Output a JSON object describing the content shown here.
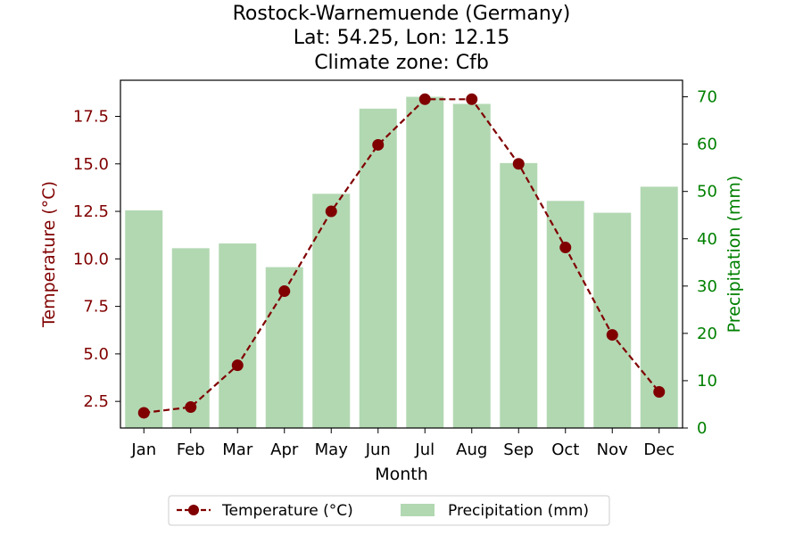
{
  "chart_data": {
    "type": "bar+line",
    "title_lines": [
      "Rostock-Warnemuende (Germany)",
      "Lat: 54.25, Lon: 12.15",
      "Climate zone: Cfb"
    ],
    "categories": [
      "Jan",
      "Feb",
      "Mar",
      "Apr",
      "May",
      "Jun",
      "Jul",
      "Aug",
      "Sep",
      "Oct",
      "Nov",
      "Dec"
    ],
    "xlabel": "Month",
    "temperature": {
      "name": "Temperature (°C)",
      "values": [
        1.9,
        2.2,
        4.4,
        8.3,
        12.5,
        16.0,
        18.4,
        18.4,
        15.0,
        10.6,
        6.0,
        3.0
      ],
      "axis_label": "Temperature (°C)",
      "ylim": [
        1.1,
        19.4
      ],
      "ticks": [
        "2.5",
        "5.0",
        "7.5",
        "10.0",
        "12.5",
        "15.0",
        "17.5"
      ],
      "tick_values": [
        2.5,
        5.0,
        7.5,
        10.0,
        12.5,
        15.0,
        17.5
      ],
      "color": "#800000"
    },
    "precipitation": {
      "name": "Precipitation (mm)",
      "values": [
        46,
        38,
        39,
        34,
        49.5,
        67.5,
        70,
        68.5,
        56,
        48,
        45.5,
        51
      ],
      "axis_label": "Precipitation (mm)",
      "ylim": [
        0,
        73.5
      ],
      "ticks": [
        "0",
        "10",
        "20",
        "30",
        "40",
        "50",
        "60",
        "70"
      ],
      "tick_values": [
        0,
        10,
        20,
        30,
        40,
        50,
        60,
        70
      ],
      "color": "#b2d8b2"
    },
    "legend_placement": "bottom-center",
    "grid": false
  }
}
